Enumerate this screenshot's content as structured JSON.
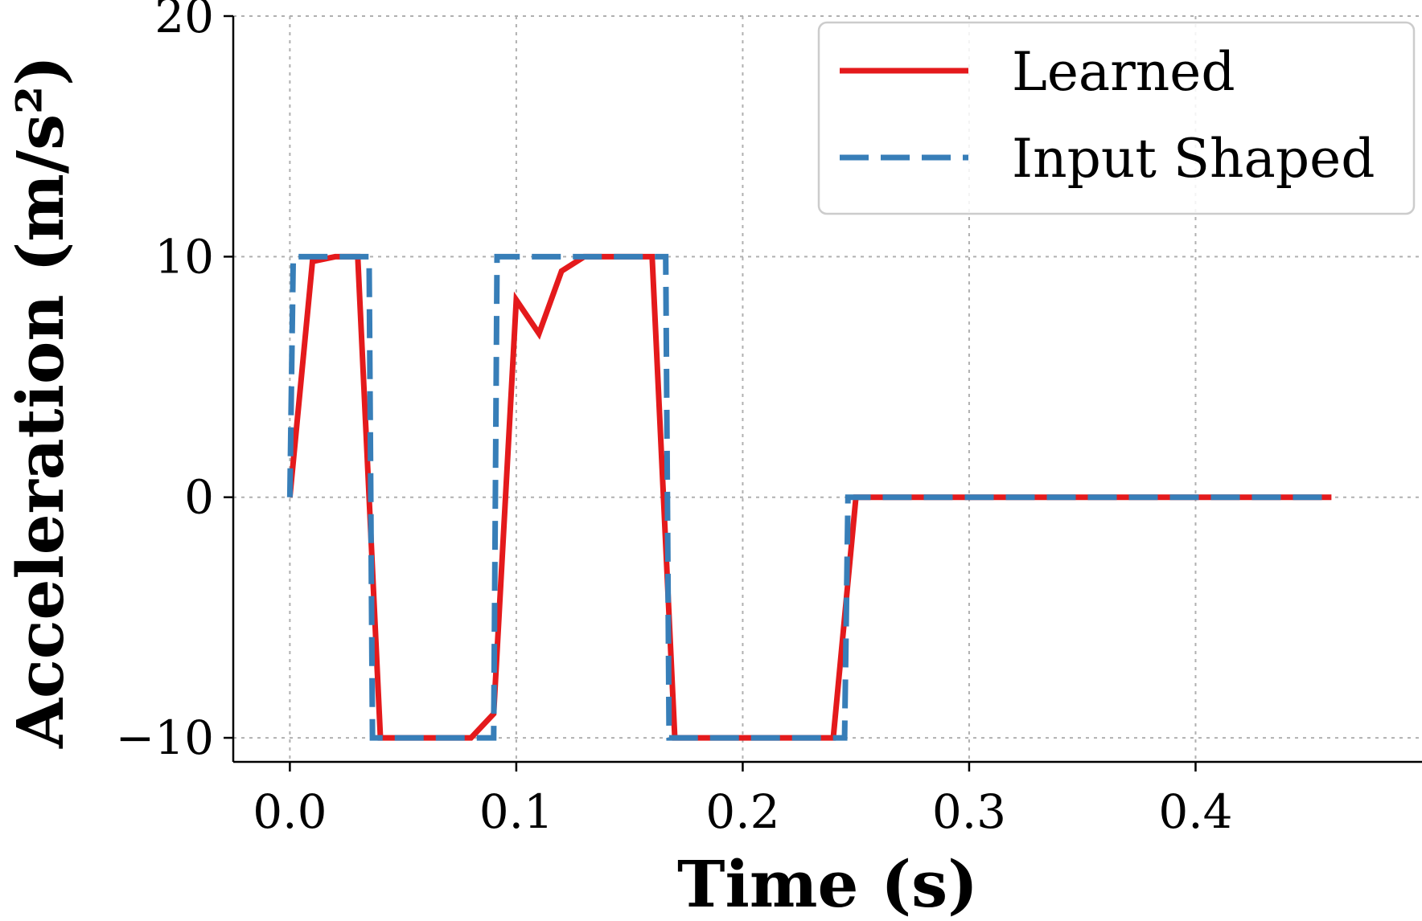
{
  "chart_data": {
    "type": "line",
    "xlabel": "Time (s)",
    "ylabel": "Acceleration (m/s²)",
    "xlim": [
      -0.025,
      0.5
    ],
    "ylim": [
      -11,
      20
    ],
    "xticks": [
      0.0,
      0.1,
      0.2,
      0.3,
      0.4
    ],
    "xtick_labels": [
      "0.0",
      "0.1",
      "0.2",
      "0.3",
      "0.4"
    ],
    "yticks": [
      -10,
      0,
      10,
      20
    ],
    "ytick_labels": [
      "−10",
      "0",
      "10",
      "20"
    ],
    "grid": true,
    "legend_position": "top-right",
    "series": [
      {
        "name": "Learned",
        "color": "#e41a1c",
        "style": "solid",
        "x": [
          0.0,
          0.01,
          0.02,
          0.03,
          0.04,
          0.05,
          0.06,
          0.07,
          0.08,
          0.09,
          0.1,
          0.11,
          0.12,
          0.13,
          0.14,
          0.15,
          0.16,
          0.17,
          0.18,
          0.19,
          0.2,
          0.21,
          0.22,
          0.23,
          0.24,
          0.25,
          0.46
        ],
        "y": [
          0,
          9.8,
          10,
          10,
          -10,
          -10,
          -10,
          -10,
          -10,
          -9,
          8.2,
          6.8,
          9.4,
          10,
          10,
          10,
          10,
          -10,
          -10,
          -10,
          -10,
          -10,
          -10,
          -10,
          -10,
          0,
          0
        ]
      },
      {
        "name": "Input Shaped",
        "color": "#377eb8",
        "style": "dashed",
        "x": [
          0.0,
          0.0015,
          0.035,
          0.0365,
          0.09,
          0.0915,
          0.166,
          0.1675,
          0.245,
          0.2465,
          0.46
        ],
        "y": [
          0,
          10,
          10,
          -10,
          -10,
          10,
          10,
          -10,
          -10,
          0,
          0
        ]
      }
    ]
  }
}
